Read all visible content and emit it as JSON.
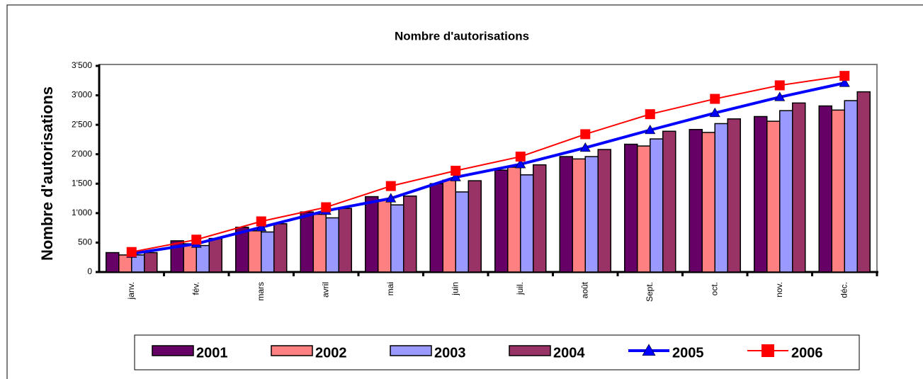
{
  "chart_data": {
    "type": "bar-line",
    "title": "Nombre d'autorisations",
    "y_label": "Nombre d'autorisations",
    "categories": [
      "janv.",
      "fév.",
      "mars",
      "avril",
      "mai",
      "juin",
      "juil.",
      "août",
      "Sept.",
      "oct.",
      "nov.",
      "déc."
    ],
    "series": [
      {
        "name": "2001",
        "type": "bar",
        "color": "#660066",
        "values": [
          330,
          530,
          760,
          1020,
          1280,
          1500,
          1730,
          1960,
          2170,
          2420,
          2640,
          2820
        ]
      },
      {
        "name": "2002",
        "type": "bar",
        "color": "#ff8080",
        "values": [
          290,
          480,
          700,
          980,
          1230,
          1560,
          1780,
          1920,
          2140,
          2370,
          2560,
          2750
        ]
      },
      {
        "name": "2003",
        "type": "bar",
        "color": "#9999ff",
        "values": [
          290,
          450,
          680,
          920,
          1140,
          1360,
          1650,
          1960,
          2260,
          2520,
          2740,
          2910
        ]
      },
      {
        "name": "2004",
        "type": "bar",
        "color": "#993366",
        "values": [
          330,
          570,
          820,
          1080,
          1290,
          1550,
          1820,
          2080,
          2390,
          2600,
          2870,
          3060
        ]
      },
      {
        "name": "2005",
        "type": "line",
        "marker": "triangle",
        "color": "#0000ff",
        "values": [
          310,
          480,
          760,
          1040,
          1250,
          1610,
          1830,
          2110,
          2410,
          2700,
          2970,
          3210
        ]
      },
      {
        "name": "2006",
        "type": "line",
        "marker": "square",
        "color": "#ff0000",
        "values": [
          340,
          550,
          860,
          1100,
          1460,
          1720,
          1960,
          2340,
          2680,
          2940,
          3170,
          3330
        ]
      }
    ],
    "ylim": [
      0,
      3500
    ],
    "yticks": [
      0,
      500,
      {
        "value": 1000,
        "label": "1'000"
      },
      {
        "value": 1500,
        "label": "1'500"
      },
      {
        "value": 2000,
        "label": "2'000"
      },
      {
        "value": 2500,
        "label": "2'500"
      },
      {
        "value": 3000,
        "label": "3'000"
      },
      {
        "value": 3500,
        "label": "3'500"
      }
    ],
    "legend": "bottom"
  }
}
